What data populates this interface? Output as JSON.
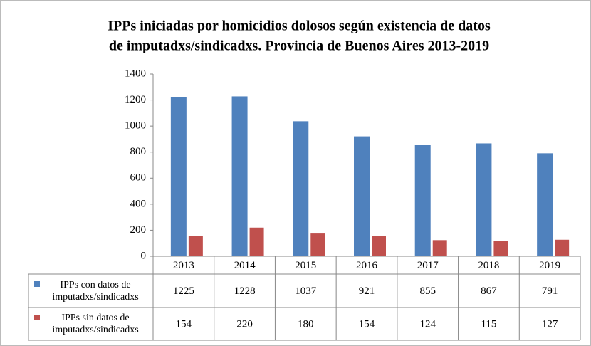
{
  "chart_data": {
    "type": "bar",
    "title": [
      "IPPs iniciadas por homicidios  dolosos según existencia de datos",
      "de imputadxs/sindicadxs.  Provincia  de Buenos Aires 2013-2019"
    ],
    "categories": [
      "2013",
      "2014",
      "2015",
      "2016",
      "2017",
      "2018",
      "2019"
    ],
    "series": [
      {
        "name": "IPPs con datos de imputadxs/sindicadxs",
        "color": "#4f81bd",
        "values": [
          1225,
          1228,
          1037,
          921,
          855,
          867,
          791
        ]
      },
      {
        "name": "IPPs sin datos de imputadxs/sindicadxs",
        "color": "#c0504d",
        "values": [
          154,
          220,
          180,
          154,
          124,
          115,
          127
        ]
      }
    ],
    "ylim": [
      0,
      1400
    ],
    "yticks": [
      0,
      200,
      400,
      600,
      800,
      1000,
      1200,
      1400
    ],
    "grid": false,
    "legend": "table"
  }
}
